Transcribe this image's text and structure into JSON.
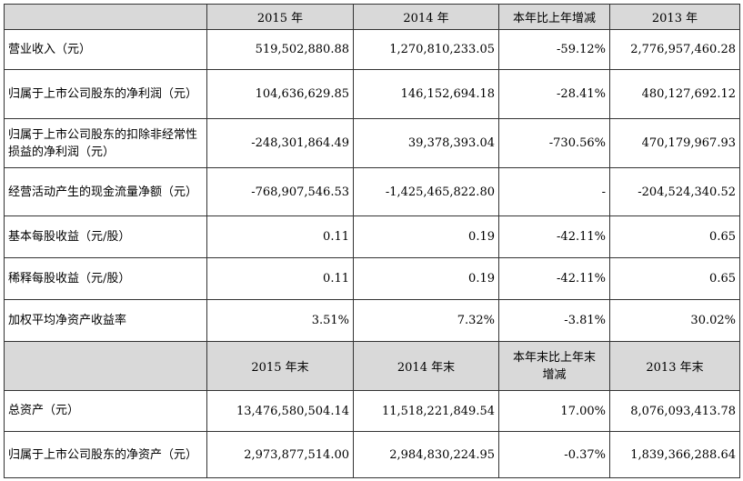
{
  "header1": [
    "",
    "2015 年",
    "2014 年",
    "本年比上年增减",
    "2013 年"
  ],
  "rows1": [
    {
      "label": "营业收入（元）",
      "v2015": "519,502,880.88",
      "v2014": "1,270,810,233.05",
      "change": "-59.12%",
      "v2013": "2,776,957,460.28"
    },
    {
      "label": "归属于上市公司股东的净利润（元）",
      "v2015": "104,636,629.85",
      "v2014": "146,152,694.18",
      "change": "-28.41%",
      "v2013": "480,127,692.12"
    },
    {
      "label": "归属于上市公司股东的扣除非经常性损益的净利润（元）",
      "v2015": "-248,301,864.49",
      "v2014": "39,378,393.04",
      "change": "-730.56%",
      "v2013": "470,179,967.93"
    },
    {
      "label": "经营活动产生的现金流量净额（元）",
      "v2015": "-768,907,546.53",
      "v2014": "-1,425,465,822.80",
      "change": "-",
      "v2013": "-204,524,340.52"
    },
    {
      "label": "基本每股收益（元/股）",
      "v2015": "0.11",
      "v2014": "0.19",
      "change": "-42.11%",
      "v2013": "0.65"
    },
    {
      "label": "稀释每股收益（元/股）",
      "v2015": "0.11",
      "v2014": "0.19",
      "change": "-42.11%",
      "v2013": "0.65"
    },
    {
      "label": "加权平均净资产收益率",
      "v2015": "3.51%",
      "v2014": "7.32%",
      "change": "-3.81%",
      "v2013": "30.02%"
    }
  ],
  "header2": [
    "",
    "2015 年末",
    "2014 年末",
    "本年末比上年末增减",
    "2013 年末"
  ],
  "rows2": [
    {
      "label": "总资产（元）",
      "v2015": "13,476,580,504.14",
      "v2014": "11,518,221,849.54",
      "change": "17.00%",
      "v2013": "8,076,093,413.78"
    },
    {
      "label": "归属于上市公司股东的净资产（元）",
      "v2015": "2,973,877,514.00",
      "v2014": "2,984,830,224.95",
      "change": "-0.37%",
      "v2013": "1,839,366,288.64"
    }
  ]
}
